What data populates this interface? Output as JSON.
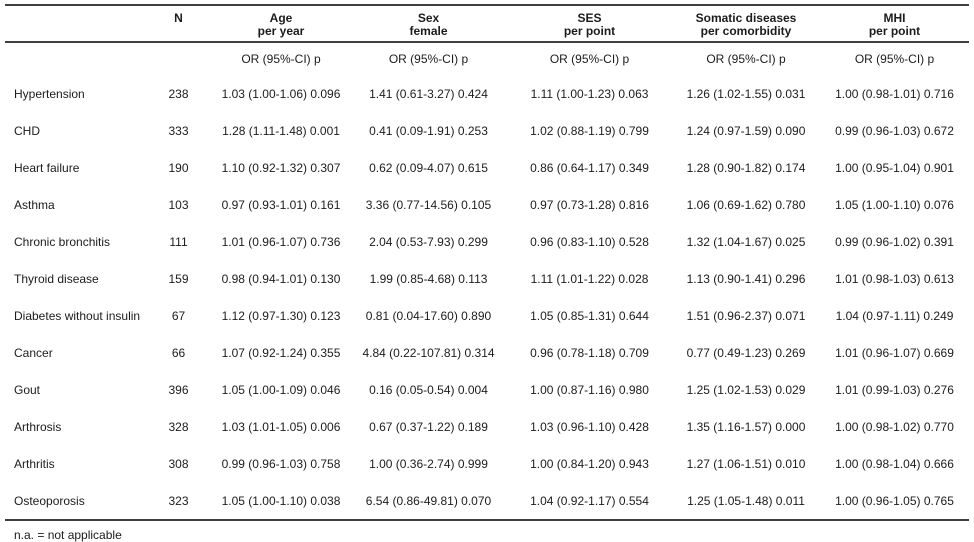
{
  "table": {
    "header": {
      "n_label": "N",
      "groups": [
        {
          "line1": "Age",
          "line2": "per year"
        },
        {
          "line1": "Sex",
          "line2": "female"
        },
        {
          "line1": "SES",
          "line2": "per point"
        },
        {
          "line1": "Somatic diseases",
          "line2": "per comorbidity"
        },
        {
          "line1": "MHI",
          "line2": "per point"
        }
      ],
      "subheader": "OR (95%-CI) p"
    },
    "rows": [
      [
        "Hypertension",
        "238",
        "1.03 (1.00-1.06) 0.096",
        "1.41 (0.61-3.27) 0.424",
        "1.11 (1.00-1.23) 0.063",
        "1.26 (1.02-1.55) 0.031",
        "1.00 (0.98-1.01) 0.716"
      ],
      [
        "CHD",
        "333",
        "1.28 (1.11-1.48) 0.001",
        "0.41 (0.09-1.91) 0.253",
        "1.02 (0.88-1.19) 0.799",
        "1.24 (0.97-1.59) 0.090",
        "0.99 (0.96-1.03) 0.672"
      ],
      [
        "Heart failure",
        "190",
        "1.10 (0.92-1.32) 0.307",
        "0.62 (0.09-4.07) 0.615",
        "0.86 (0.64-1.17) 0.349",
        "1.28 (0.90-1.82) 0.174",
        "1.00 (0.95-1.04) 0.901"
      ],
      [
        "Asthma",
        "103",
        "0.97 (0.93-1.01) 0.161",
        "3.36 (0.77-14.56) 0.105",
        "0.97 (0.73-1.28) 0.816",
        "1.06 (0.69-1.62) 0.780",
        "1.05 (1.00-1.10) 0.076"
      ],
      [
        "Chronic bronchitis",
        "111",
        "1.01 (0.96-1.07) 0.736",
        "2.04 (0.53-7.93) 0.299",
        "0.96 (0.83-1.10) 0.528",
        "1.32 (1.04-1.67) 0.025",
        "0.99 (0.96-1.02) 0.391"
      ],
      [
        "Thyroid disease",
        "159",
        "0.98 (0.94-1.01) 0.130",
        "1.99 (0.85-4.68) 0.113",
        "1.11 (1.01-1.22) 0.028",
        "1.13 (0.90-1.41) 0.296",
        "1.01 (0.98-1.03) 0.613"
      ],
      [
        "Diabetes without insulin",
        "67",
        "1.12 (0.97-1.30) 0.123",
        "0.81 (0.04-17.60) 0.890",
        "1.05 (0.85-1.31) 0.644",
        "1.51 (0.96-2.37) 0.071",
        "1.04 (0.97-1.11) 0.249"
      ],
      [
        "Cancer",
        "66",
        "1.07 (0.92-1.24) 0.355",
        "4.84 (0.22-107.81) 0.314",
        "0.96 (0.78-1.18) 0.709",
        "0.77 (0.49-1.23) 0.269",
        "1.01 (0.96-1.07) 0.669"
      ],
      [
        "Gout",
        "396",
        "1.05 (1.00-1.09) 0.046",
        "0.16 (0.05-0.54) 0.004",
        "1.00 (0.87-1.16) 0.980",
        "1.25 (1.02-1.53) 0.029",
        "1.01 (0.99-1.03) 0.276"
      ],
      [
        "Arthrosis",
        "328",
        "1.03 (1.01-1.05) 0.006",
        "0.67 (0.37-1.22) 0.189",
        "1.03 (0.96-1.10) 0.428",
        "1.35 (1.16-1.57) 0.000",
        "1.00 (0.98-1.02) 0.770"
      ],
      [
        "Arthritis",
        "308",
        "0.99 (0.96-1.03) 0.758",
        "1.00 (0.36-2.74) 0.999",
        "1.00 (0.84-1.20) 0.943",
        "1.27 (1.06-1.51) 0.010",
        "1.00 (0.98-1.04) 0.666"
      ],
      [
        "Osteoporosis",
        "323",
        "1.05 (1.00-1.10) 0.038",
        "6.54 (0.86-49.81) 0.070",
        "1.04 (0.92-1.17) 0.554",
        "1.25 (1.05-1.48) 0.011",
        "1.00 (0.96-1.05) 0.765"
      ]
    ],
    "footnote": "n.a. = not applicable"
  }
}
